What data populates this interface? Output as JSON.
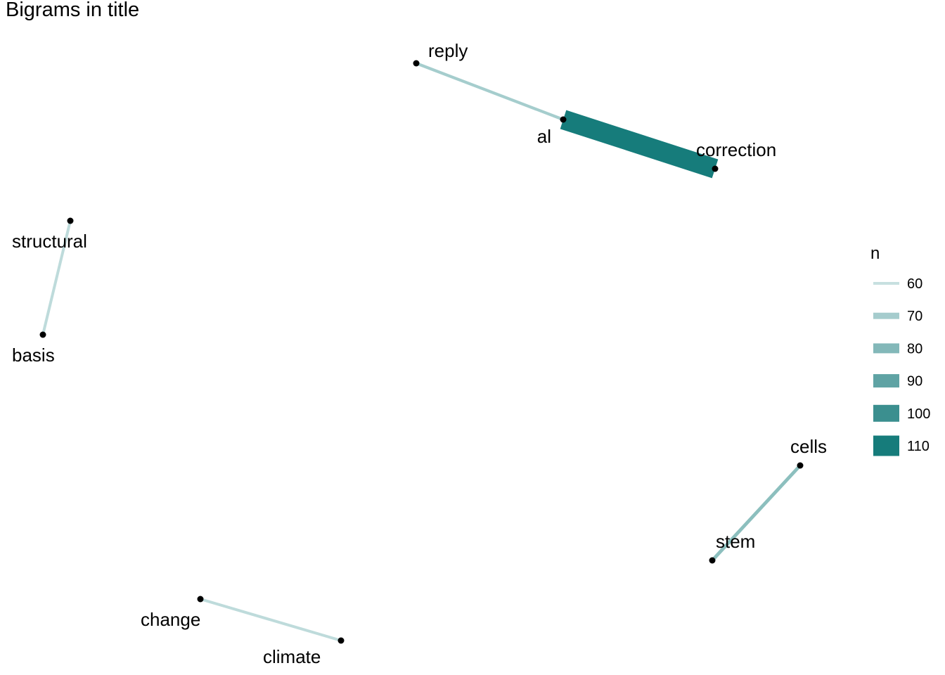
{
  "chart_data": {
    "type": "network",
    "title": "Bigrams in title",
    "legend": {
      "title": "n",
      "position": "right",
      "entries": [
        {
          "label": "60",
          "value": 60,
          "color": "#c7e0e0"
        },
        {
          "label": "70",
          "value": 70,
          "color": "#a5cccd"
        },
        {
          "label": "80",
          "value": 80,
          "color": "#83b8b9"
        },
        {
          "label": "90",
          "value": 90,
          "color": "#5fa3a4"
        },
        {
          "label": "100",
          "value": 100,
          "color": "#3b8f8f"
        },
        {
          "label": "110",
          "value": 110,
          "color": "#167c7b"
        }
      ]
    },
    "nodes": [
      {
        "id": "reply",
        "label": "reply"
      },
      {
        "id": "al",
        "label": "al"
      },
      {
        "id": "correction",
        "label": "correction"
      },
      {
        "id": "structural",
        "label": "structural"
      },
      {
        "id": "basis",
        "label": "basis"
      },
      {
        "id": "cells",
        "label": "cells"
      },
      {
        "id": "stem",
        "label": "stem"
      },
      {
        "id": "change",
        "label": "change"
      },
      {
        "id": "climate",
        "label": "climate"
      }
    ],
    "edges": [
      {
        "from": "reply",
        "to": "al",
        "n": 66
      },
      {
        "from": "al",
        "to": "correction",
        "n": 112
      },
      {
        "from": "structural",
        "to": "basis",
        "n": 58
      },
      {
        "from": "stem",
        "to": "cells",
        "n": 74
      },
      {
        "from": "change",
        "to": "climate",
        "n": 58
      }
    ],
    "n_range": [
      55,
      112
    ]
  }
}
